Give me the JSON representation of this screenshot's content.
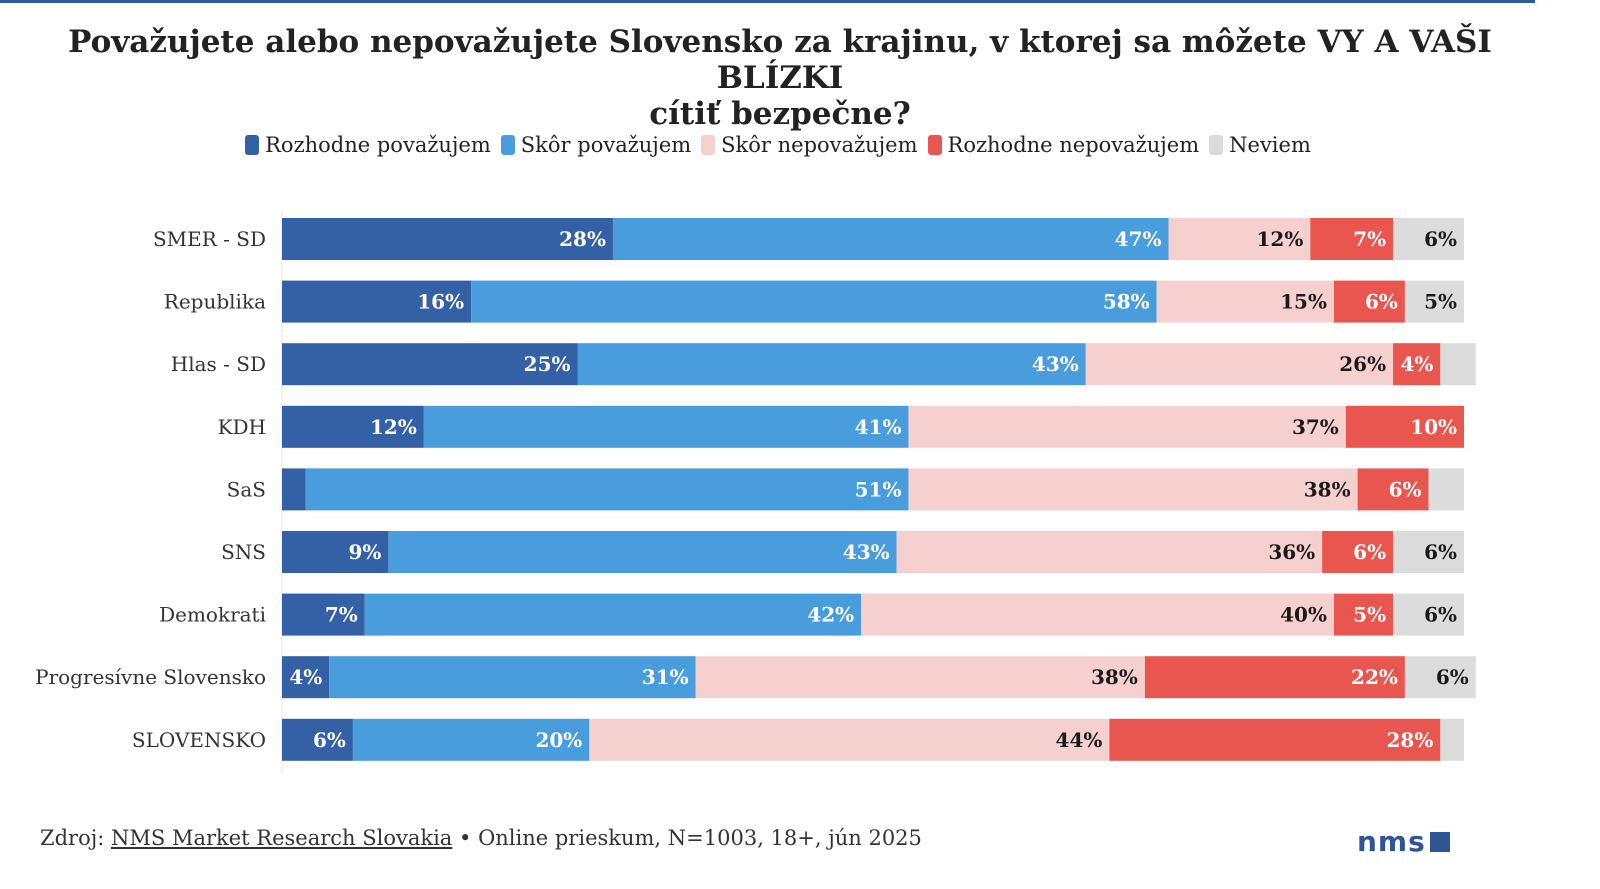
{
  "colors": {
    "rule": "#2d5a9c",
    "logo": "#2f5597",
    "segments": [
      "#3461a5",
      "#4a9ddc",
      "#f5d0cf",
      "#e8564f",
      "#dcdcdc"
    ],
    "label_light": "#ffffff",
    "label_dark": "#1a1a1a"
  },
  "footer": {
    "prefix": "Zdroj:",
    "link_text": "NMS Market Research Slovakia",
    "suffix": " • Online prieskum, N=1003, 18+, jún 2025"
  },
  "logo": {
    "text": "nms"
  },
  "chart_data": {
    "type": "bar",
    "orientation": "horizontal",
    "stacked": true,
    "title_lines": [
      "Považujete alebo nepovažujete Slovensko za krajinu, v ktorej sa môžete VY A VAŠI BLÍZKI",
      "cítiť bezpečne?"
    ],
    "legend_position": "top",
    "categories": [
      "SMER - SD",
      "Republika",
      "Hlas - SD",
      "KDH",
      "SaS",
      "SNS",
      "Demokrati",
      "Progresívne Slovensko",
      "SLOVENSKO"
    ],
    "series": [
      {
        "name": "Rozhodne považujem",
        "values": [
          28,
          16,
          25,
          12,
          2,
          9,
          7,
          4,
          6
        ],
        "labels": [
          "28%",
          "16%",
          "25%",
          "12%",
          "",
          "9%",
          "7%",
          "4%",
          "6%"
        ]
      },
      {
        "name": "Skôr považujem",
        "values": [
          47,
          58,
          43,
          41,
          51,
          43,
          42,
          31,
          20
        ],
        "labels": [
          "47%",
          "58%",
          "43%",
          "41%",
          "51%",
          "43%",
          "42%",
          "31%",
          "20%"
        ]
      },
      {
        "name": "Skôr nepovažujem",
        "values": [
          12,
          15,
          26,
          37,
          38,
          36,
          40,
          38,
          44
        ],
        "labels": [
          "12%",
          "15%",
          "26%",
          "37%",
          "38%",
          "36%",
          "40%",
          "38%",
          "44%"
        ]
      },
      {
        "name": "Rozhodne nepovažujem",
        "values": [
          7,
          6,
          4,
          10,
          6,
          6,
          5,
          22,
          28
        ],
        "labels": [
          "7%",
          "6%",
          "4%",
          "10%",
          "6%",
          "6%",
          "5%",
          "22%",
          "28%"
        ]
      },
      {
        "name": "Neviem",
        "values": [
          6,
          5,
          3,
          0,
          3,
          6,
          6,
          6,
          2
        ],
        "labels": [
          "6%",
          "5%",
          "",
          "",
          "",
          "6%",
          "6%",
          "6%",
          ""
        ]
      }
    ],
    "xlim": [
      0,
      100
    ],
    "grid": false
  }
}
